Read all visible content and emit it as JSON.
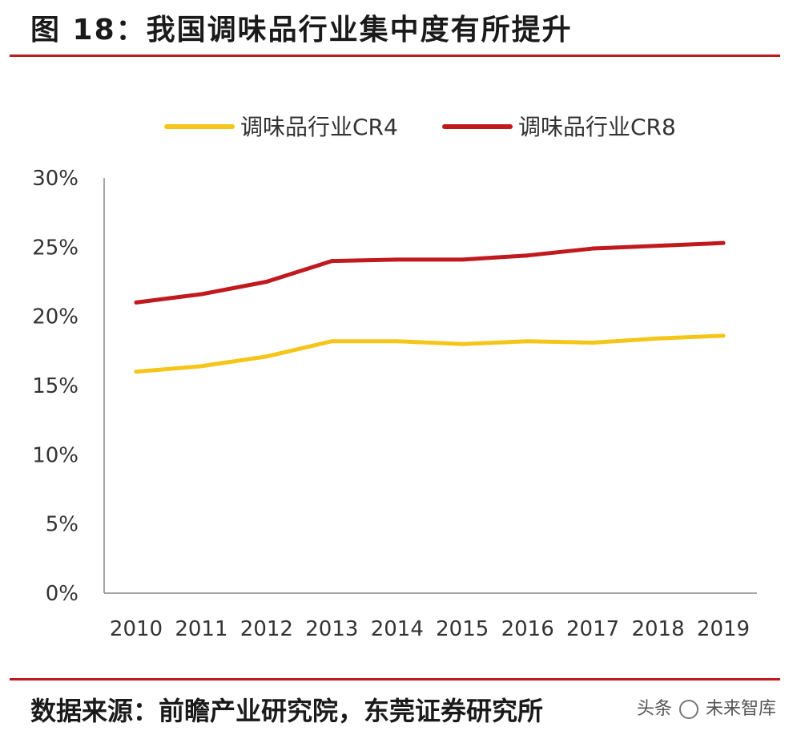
{
  "header": {
    "title": "图 18：我国调味品行业集中度有所提升"
  },
  "footer": {
    "source": "数据来源：前瞻产业研究院，东莞证券研究所",
    "watermark_prefix": "头条",
    "watermark_name": "未来智库"
  },
  "colors": {
    "accent_rule": "#c0191e",
    "series_cr4": "#f5c518",
    "series_cr8": "#c0191e",
    "axis": "#888888"
  },
  "chart_data": {
    "type": "line",
    "categories": [
      "2010",
      "2011",
      "2012",
      "2013",
      "2014",
      "2015",
      "2016",
      "2017",
      "2018",
      "2019"
    ],
    "series": [
      {
        "name": "调味品行业CR4",
        "color": "#f5c518",
        "values": [
          16.0,
          16.4,
          17.1,
          18.2,
          18.2,
          18.0,
          18.2,
          18.1,
          18.4,
          18.6
        ]
      },
      {
        "name": "调味品行业CR8",
        "color": "#c0191e",
        "values": [
          21.0,
          21.6,
          22.5,
          24.0,
          24.1,
          24.1,
          24.4,
          24.9,
          25.1,
          25.3
        ]
      }
    ],
    "y_ticks": [
      "0%",
      "5%",
      "10%",
      "15%",
      "20%",
      "25%",
      "30%"
    ],
    "ylim": [
      0,
      30
    ],
    "grid": false,
    "legend_position": "top"
  }
}
